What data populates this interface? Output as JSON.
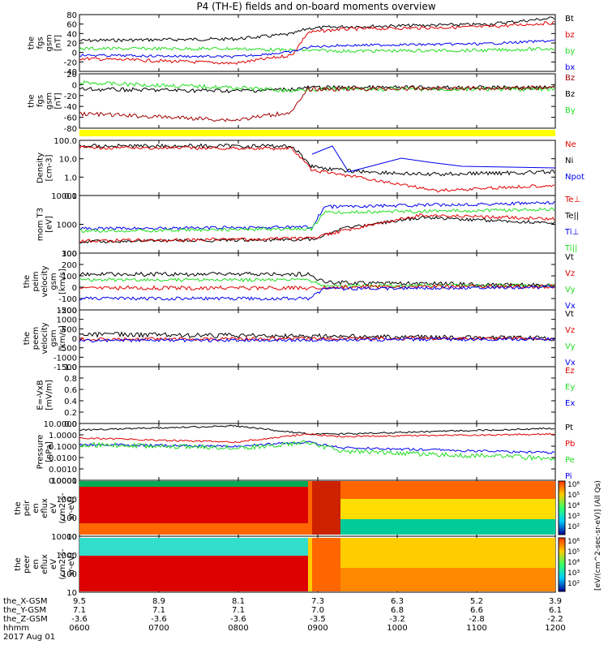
{
  "title": "P4 (TH-E) fields and on-board moments overview",
  "colors": {
    "black": "#000000",
    "red": "#e00000",
    "green": "#22dd22",
    "blue": "#0000ee",
    "darkred": "#a00000",
    "yellow": "#ffff00"
  },
  "panels": [
    {
      "ylabel": [
        "the",
        "fgs",
        "gsm",
        "[nT]"
      ],
      "ticks": [
        "80",
        "60",
        "40",
        "20",
        "0",
        "-20",
        "-40"
      ],
      "legend": [
        [
          "Bt",
          "black"
        ],
        [
          "bz",
          "red"
        ],
        [
          "by",
          "green"
        ],
        [
          "bx",
          "blue"
        ]
      ]
    },
    {
      "ylabel": [
        "the",
        "fgs",
        "gsm",
        "[nT]"
      ],
      "ticks": [
        "20",
        "0",
        "-20",
        "-40",
        "-60",
        "-80"
      ],
      "legend": [
        [
          "Bz",
          "darkred"
        ],
        [
          "Bz",
          "black"
        ],
        [
          "By",
          "green"
        ]
      ]
    },
    {
      "ylabel": [
        "Density",
        "[cm-3]"
      ],
      "ticks": [
        "100.0",
        "10.0",
        "1.0",
        "0.1"
      ],
      "legend": [
        [
          "Ne",
          "red"
        ],
        [
          "Ni",
          "black"
        ],
        [
          "Npot",
          "blue"
        ]
      ]
    },
    {
      "ylabel": [
        "mom T3",
        "[eV]"
      ],
      "ticks": [
        "10000",
        "1000",
        "100"
      ],
      "legend": [
        [
          "Te⊥",
          "red"
        ],
        [
          "Te||",
          "black"
        ],
        [
          "Ti⊥",
          "blue"
        ],
        [
          "Ti||",
          "green"
        ]
      ]
    },
    {
      "ylabel": [
        "the",
        "peim",
        "velocity",
        "gsm",
        "[km/s]"
      ],
      "ticks": [
        "300",
        "200",
        "100",
        "0",
        "-100",
        "-200"
      ],
      "legend": [
        [
          "Vt",
          "black"
        ],
        [
          "Vz",
          "red"
        ],
        [
          "Vy",
          "green"
        ],
        [
          "Vx",
          "blue"
        ]
      ]
    },
    {
      "ylabel": [
        "the",
        "peem",
        "velocity",
        "gsm",
        "[km/s]"
      ],
      "ticks": [
        "1500",
        "1000",
        "500",
        "0",
        "-500",
        "-1000",
        "-1500"
      ],
      "legend": [
        [
          "Vt",
          "black"
        ],
        [
          "Vz",
          "red"
        ],
        [
          "Vy",
          "green"
        ],
        [
          "Vx",
          "blue"
        ]
      ]
    },
    {
      "ylabel": [
        "E=-VxB",
        "[mV/m]"
      ],
      "ticks": [
        "1.0",
        "0.8",
        "0.6",
        "0.4",
        "0.2",
        "0.0"
      ],
      "legend": [
        [
          "Ez",
          "red"
        ],
        [
          "Ey",
          "green"
        ],
        [
          "Ex",
          "blue"
        ]
      ]
    },
    {
      "ylabel": [
        "Pressure",
        "[nPa]"
      ],
      "ticks": [
        "10.0000",
        "1.0000",
        "0.1000",
        "0.0100",
        "0.0010",
        "0.0001"
      ],
      "legend": [
        [
          "Pt",
          "black"
        ],
        [
          "Pb",
          "red"
        ],
        [
          "Pe",
          "green"
        ],
        [
          "Pi",
          "blue"
        ]
      ]
    },
    {
      "ylabel": [
        "the",
        "peir",
        "en",
        "eflux",
        "eV",
        "(cm2-s-",
        "sr-eV)"
      ],
      "ticks": [
        "10000",
        "1000",
        "100",
        "10"
      ],
      "legend": []
    },
    {
      "ylabel": [
        "the",
        "peer",
        "en",
        "eflux",
        "eV",
        "(cm2-s-",
        "sr-eV)"
      ],
      "ticks": [
        "10000",
        "1000",
        "100",
        "10"
      ],
      "legend": []
    }
  ],
  "colorbar": {
    "top_ticks": [
      "10⁶",
      "10⁵",
      "10⁴",
      "10³",
      "10²"
    ],
    "bottom_ticks": [
      "10⁶",
      "10⁵",
      "10⁴",
      "10³",
      "10²"
    ],
    "label": "[eV/(cm^2-sec-sr-eV)] (All Qs)"
  },
  "footer": {
    "row_labels": [
      "the_X-GSM",
      "the_Y-GSM",
      "the_Z-GSM",
      "hhmm",
      "2017 Aug 01"
    ],
    "columns": [
      [
        "9.5",
        "7.1",
        "-3.6",
        "0600"
      ],
      [
        "8.9",
        "7.1",
        "-3.6",
        "0700"
      ],
      [
        "8.1",
        "7.1",
        "-3.6",
        "0800"
      ],
      [
        "7.3",
        "7.0",
        "-3.5",
        "0900"
      ],
      [
        "6.3",
        "6.8",
        "-3.2",
        "1000"
      ],
      [
        "5.2",
        "6.6",
        "-2.8",
        "1100"
      ],
      [
        "3.9",
        "6.1",
        "-2.2",
        "1200"
      ]
    ]
  },
  "chart_data": {
    "type": "line",
    "x_times": [
      "0600",
      "0700",
      "0800",
      "0900",
      "1000",
      "1100",
      "1200"
    ],
    "series": [
      {
        "name": "Bt",
        "panel": 0,
        "values": [
          22,
          24,
          20,
          40,
          45,
          50,
          70
        ]
      },
      {
        "name": "bz",
        "panel": 0,
        "values": [
          -5,
          -10,
          -15,
          38,
          42,
          48,
          62
        ]
      },
      {
        "name": "by",
        "panel": 0,
        "values": [
          5,
          8,
          -5,
          5,
          3,
          8,
          10
        ]
      },
      {
        "name": "bx",
        "panel": 0,
        "values": [
          -8,
          -5,
          -12,
          15,
          18,
          22,
          28
        ]
      },
      {
        "name": "Ne",
        "panel": 2,
        "values": [
          50,
          50,
          70,
          6,
          0.5,
          0.3,
          0.3
        ]
      },
      {
        "name": "Ni",
        "panel": 2,
        "values": [
          60,
          60,
          80,
          8,
          1,
          1,
          1.2
        ]
      },
      {
        "name": "Npot",
        "panel": 2,
        "values": [
          50,
          50,
          70,
          8,
          1.5,
          3,
          3
        ]
      },
      {
        "name": "Pt",
        "panel": 7,
        "values": [
          2,
          3,
          2.5,
          1.5,
          1.2,
          1.3,
          1.5
        ]
      },
      {
        "name": "Pb",
        "panel": 7,
        "values": [
          0.5,
          0.8,
          0.6,
          1.2,
          1.5,
          1.6,
          2
        ]
      },
      {
        "name": "Pe",
        "panel": 7,
        "values": [
          0.1,
          0.1,
          0.08,
          0.05,
          0.04,
          0.04,
          0.04
        ]
      },
      {
        "name": "Pi",
        "panel": 7,
        "values": [
          1.5,
          2,
          2,
          0.8,
          0.5,
          0.4,
          0.3
        ]
      }
    ],
    "ylim_B": [
      -40,
      80
    ],
    "ylim_density": [
      0.1,
      100
    ],
    "ylim_pressure": [
      0.0001,
      10
    ]
  }
}
